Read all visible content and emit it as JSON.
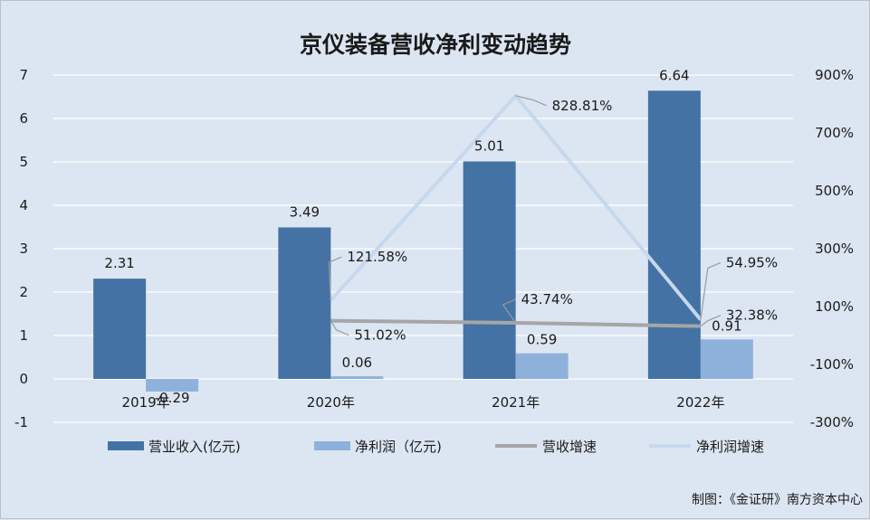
{
  "chart_data": {
    "type": "bar",
    "title": "京仪装备营收净利变动趋势",
    "categories": [
      "2019年",
      "2020年",
      "2021年",
      "2022年"
    ],
    "series": [
      {
        "name": "营业收入(亿元)",
        "kind": "bar",
        "axis": "left",
        "color": "#4472a4",
        "values": [
          2.31,
          3.49,
          5.01,
          6.64
        ],
        "labels": [
          "2.31",
          "3.49",
          "5.01",
          "6.64"
        ]
      },
      {
        "name": "净利润（亿元)",
        "kind": "bar",
        "axis": "left",
        "color": "#8eb1dc",
        "values": [
          -0.29,
          0.06,
          0.59,
          0.91
        ],
        "labels": [
          "-0.29",
          "0.06",
          "0.59",
          "0.91"
        ]
      },
      {
        "name": "营收增速",
        "kind": "line",
        "axis": "right",
        "color": "#a6a6a6",
        "values": [
          null,
          51.02,
          43.74,
          32.38
        ],
        "labels": [
          "",
          "51.02%",
          "43.74%",
          "32.38%"
        ]
      },
      {
        "name": "净利润增速",
        "kind": "line",
        "axis": "right",
        "color": "#c6d8ee",
        "values": [
          null,
          121.58,
          828.81,
          54.95
        ],
        "labels": [
          "",
          "121.58%",
          "828.81%",
          "54.95%"
        ]
      }
    ],
    "y_left": {
      "min": -1,
      "max": 7,
      "ticks": [
        "-1",
        "0",
        "1",
        "2",
        "3",
        "4",
        "5",
        "6",
        "7"
      ]
    },
    "y_right": {
      "min": -300,
      "max": 900,
      "ticks": [
        "-300%",
        "-100%",
        "100%",
        "300%",
        "500%",
        "700%",
        "900%"
      ]
    },
    "grid": true,
    "legend_position": "bottom"
  },
  "credit": "制图：《金证研》南方资本中心"
}
